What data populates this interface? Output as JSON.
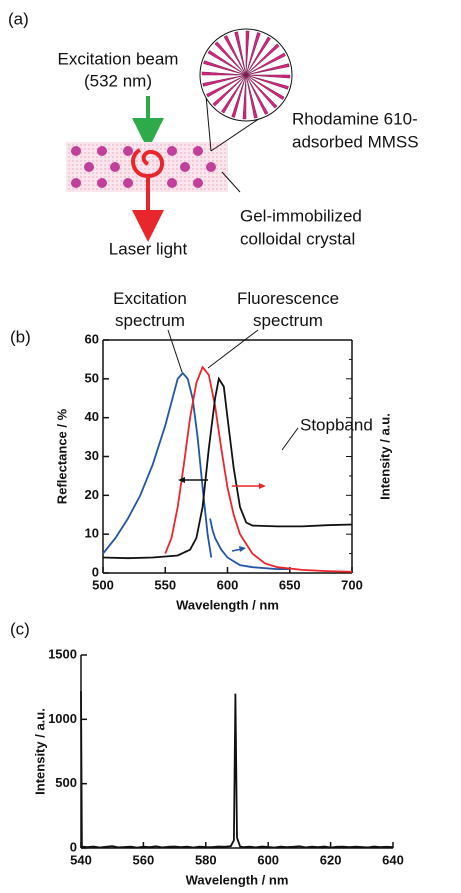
{
  "diagram": {
    "panel_label": "(a)",
    "excitation": [
      "Excitation beam",
      "(532 nm)"
    ],
    "particle": [
      "Rhodamine 610-",
      "adsorbed MMSS"
    ],
    "crystal": [
      "Gel-immobilized",
      "colloidal crystal"
    ],
    "output": "Laser light"
  },
  "chart_data": [
    {
      "type": "line",
      "panel_label": "(b)",
      "xlabel": "Wavelength / nm",
      "ylabel": "Reflectance / %",
      "y2label": "Intensity / a.u.",
      "xlim": [
        500,
        700
      ],
      "xticks": [
        500,
        550,
        600,
        650,
        700
      ],
      "ylim": [
        0,
        60
      ],
      "yticks": [
        0,
        10,
        20,
        30,
        40,
        50,
        60
      ],
      "annotations": [
        "Stopband"
      ],
      "series": [
        {
          "name": "Excitation spectrum",
          "color": "#2255a4",
          "x": [
            500,
            510,
            520,
            530,
            540,
            550,
            555,
            560,
            564,
            568,
            572,
            576,
            580,
            584,
            587
          ],
          "values": [
            5,
            9,
            14,
            20,
            28,
            38,
            44,
            50,
            51.5,
            50,
            45,
            35,
            22,
            10,
            4
          ]
        },
        {
          "color": "#2255a4",
          "x": [
            586,
            588,
            590,
            595,
            600,
            610,
            620,
            640,
            650
          ],
          "values": [
            14,
            11,
            9,
            6,
            4,
            2,
            1.5,
            1,
            1
          ]
        },
        {
          "name": "Fluorescence spectrum",
          "color": "#e8262c",
          "x": [
            550,
            555,
            560,
            565,
            570,
            575,
            580,
            585,
            590,
            595,
            600,
            605,
            610,
            620,
            630,
            640,
            660,
            680,
            700
          ],
          "values": [
            5,
            9,
            17,
            28,
            40,
            49,
            53,
            51,
            43,
            32,
            22,
            15,
            10,
            5,
            2.5,
            1.5,
            0.8,
            0.5,
            0.3
          ]
        },
        {
          "name": "Stopband",
          "color": "#111111",
          "x": [
            500,
            520,
            540,
            560,
            570,
            575,
            580,
            585,
            590,
            593,
            597,
            600,
            605,
            610,
            615,
            620,
            640,
            660,
            680,
            700
          ],
          "values": [
            4,
            3.8,
            4,
            4.5,
            6,
            9,
            17,
            32,
            45,
            50,
            48,
            40,
            27,
            17,
            13,
            12.2,
            12,
            12,
            12.3,
            12.5
          ]
        }
      ]
    },
    {
      "type": "line",
      "panel_label": "(c)",
      "xlabel": "Wavelength / nm",
      "ylabel": "Intensity / a.u.",
      "xlim": [
        540,
        640
      ],
      "xticks": [
        540,
        560,
        580,
        600,
        620,
        640
      ],
      "ylim": [
        0,
        1500
      ],
      "yticks": [
        0,
        500,
        1000,
        1500
      ],
      "series": [
        {
          "color": "#111111",
          "x": [
            540,
            540.3,
            542,
            544,
            546,
            548,
            550,
            552,
            554,
            556,
            558,
            560,
            562,
            564,
            566,
            568,
            570,
            572,
            574,
            576,
            578,
            580,
            582,
            584,
            586,
            588,
            589,
            589.5,
            590,
            591,
            592,
            594,
            596,
            598,
            600,
            602,
            604,
            606,
            608,
            610,
            612,
            614,
            616,
            618,
            620,
            622,
            624,
            626,
            628,
            630,
            632,
            634,
            636,
            638,
            640
          ],
          "values": [
            1220,
            10,
            6,
            12,
            4,
            9,
            14,
            5,
            8,
            11,
            3,
            10,
            7,
            13,
            5,
            9,
            12,
            6,
            10,
            4,
            11,
            8,
            6,
            12,
            9,
            15,
            60,
            1200,
            80,
            12,
            7,
            10,
            5,
            12,
            8,
            4,
            11,
            6,
            9,
            13,
            5,
            10,
            7,
            12,
            4,
            9,
            11,
            6,
            10,
            8,
            5,
            12,
            7,
            9,
            6
          ]
        }
      ]
    }
  ]
}
